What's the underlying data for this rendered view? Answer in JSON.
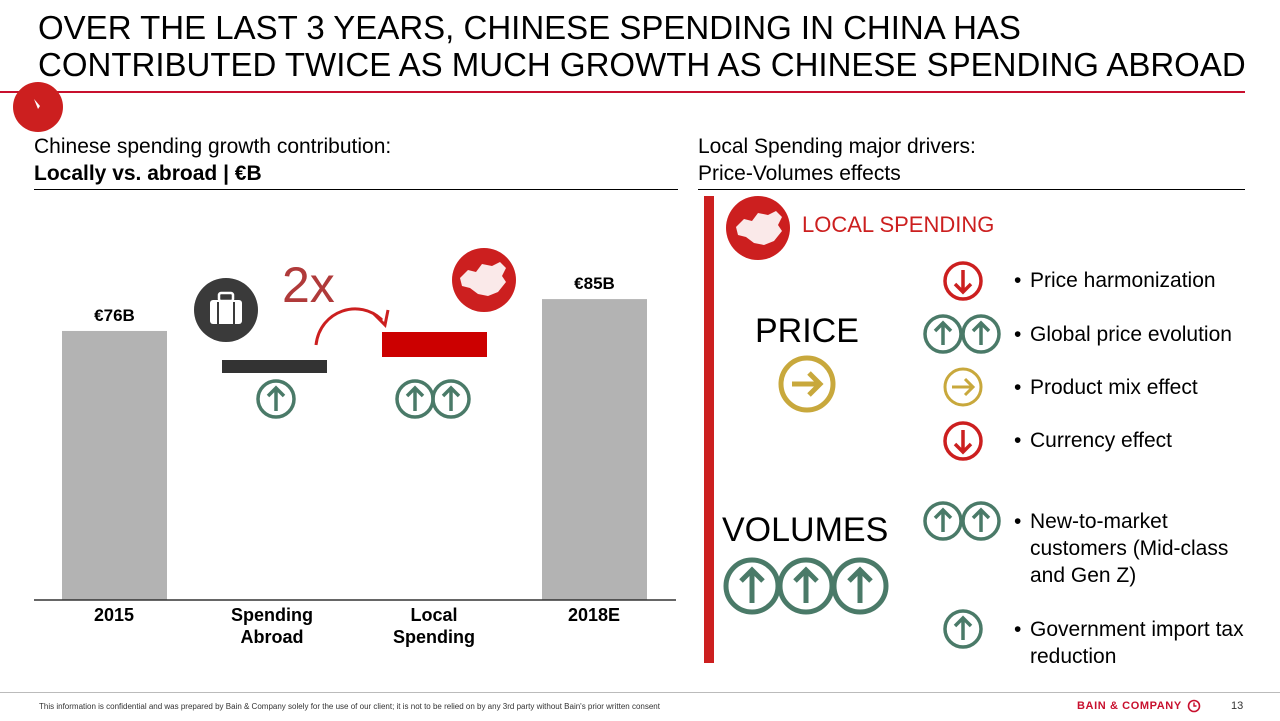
{
  "title": "OVER THE LAST 3 YEARS, CHINESE SPENDING IN CHINA HAS CONTRIBUTED TWICE AS MUCH GROWTH AS CHINESE SPENDING ABROAD",
  "left_panel": {
    "subtitle_line1": "Chinese spending growth contribution:",
    "subtitle_line2": "Locally vs. abroad | €B",
    "multiplier": "2x"
  },
  "chart_data": {
    "type": "bar",
    "subtype": "waterfall",
    "categories": [
      "2015",
      "Spending Abroad",
      "Local Spending",
      "2018E"
    ],
    "category_lines": [
      [
        "2015"
      ],
      [
        "Spending",
        "Abroad"
      ],
      [
        "Local",
        "Spending"
      ],
      [
        "2018E"
      ]
    ],
    "values": [
      76,
      3,
      6,
      85
    ],
    "data_labels": [
      "€76B",
      "",
      "",
      "€85B"
    ],
    "colors": [
      "#b3b3b3",
      "#333333",
      "#cc0000",
      "#b3b3b3"
    ],
    "ylim": [
      0,
      100
    ],
    "grid": false,
    "legend": "none"
  },
  "right_panel": {
    "subtitle_line1": "Local Spending major drivers:",
    "subtitle_line2": "Price-Volumes effects",
    "section_label": "LOCAL SPENDING",
    "price_label": "PRICE",
    "volumes_label": "VOLUMES",
    "drivers": [
      {
        "text": "Price harmonization",
        "icon": "arrow-down-icon"
      },
      {
        "text": "Global price evolution",
        "icon": "double-arrow-up-icon"
      },
      {
        "text": "Product mix effect",
        "icon": "arrow-right-icon"
      },
      {
        "text": "Currency effect",
        "icon": "arrow-down-icon"
      },
      {
        "text": "New-to-market customers (Mid-class and Gen Z)",
        "lines": [
          "New-to-market",
          "customers (Mid-class",
          "and Gen Z)"
        ],
        "icon": "double-arrow-up-icon"
      },
      {
        "text": "Government import tax reduction",
        "lines": [
          "Government import tax",
          "reduction"
        ],
        "icon": "arrow-up-icon"
      }
    ]
  },
  "colors": {
    "accent": "#c8102e",
    "green": "#4a7a68",
    "gold": "#c8a83c",
    "red_icon": "#cc1f1f",
    "grey_bar": "#b3b3b3"
  },
  "footer": {
    "note": "This information is confidential and was prepared by Bain & Company solely for the use of our client; it is not to be relied on by any 3rd party without Bain's prior written consent",
    "brand": "BAIN & COMPANY",
    "page": "13"
  }
}
